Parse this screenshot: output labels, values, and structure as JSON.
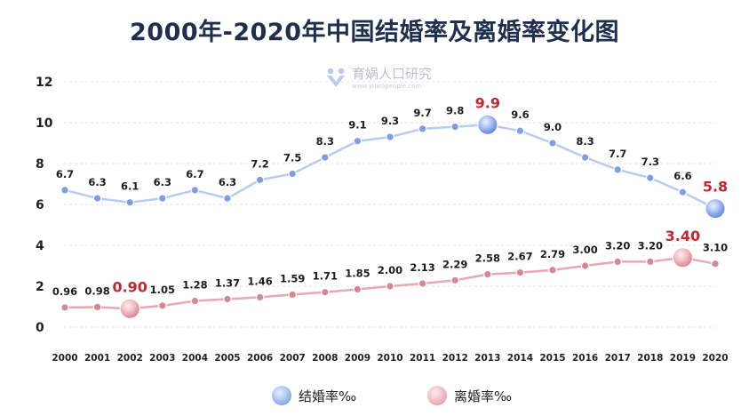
{
  "title": "2000年-2020年中国结婚率及离婚率变化图",
  "watermark": {
    "name": "育娲人口研究",
    "url": "www.yuwapeople.com"
  },
  "colors": {
    "marriage_line": "#b9ccef",
    "marriage_marker": "#7d9ee3",
    "divorce_line": "#e6a9b2",
    "divorce_marker": "#d48893",
    "highlight_label": "#c0282f",
    "grid": "#dde2ea"
  },
  "chart_data": {
    "type": "line",
    "title": "2000年-2020年中国结婚率及离婚率变化图",
    "categories": [
      "2000",
      "2001",
      "2002",
      "2003",
      "2004",
      "2005",
      "2006",
      "2007",
      "2008",
      "2009",
      "2010",
      "2011",
      "2012",
      "2013",
      "2014",
      "2015",
      "2016",
      "2017",
      "2018",
      "2019",
      "2020"
    ],
    "ylim": [
      0,
      12
    ],
    "yticks": [
      "0",
      "2",
      "4",
      "6",
      "8",
      "10",
      "12"
    ],
    "grid": true,
    "legend_position": "bottom",
    "series": [
      {
        "name": "结婚率‰",
        "values": [
          6.7,
          6.3,
          6.1,
          6.3,
          6.7,
          6.3,
          7.2,
          7.5,
          8.3,
          9.1,
          9.3,
          9.7,
          9.8,
          9.9,
          9.6,
          9.0,
          8.3,
          7.7,
          7.3,
          6.6,
          5.8
        ],
        "labels": [
          "6.7",
          "6.3",
          "6.1",
          "6.3",
          "6.7",
          "6.3",
          "7.2",
          "7.5",
          "8.3",
          "9.1",
          "9.3",
          "9.7",
          "9.8",
          "9.9",
          "9.6",
          "9.0",
          "8.3",
          "7.7",
          "7.3",
          "6.6",
          "5.8"
        ],
        "highlights": [
          13,
          20
        ]
      },
      {
        "name": "离婚率‰",
        "values": [
          0.96,
          0.98,
          0.9,
          1.05,
          1.28,
          1.37,
          1.46,
          1.59,
          1.71,
          1.85,
          2.0,
          2.13,
          2.29,
          2.58,
          2.67,
          2.79,
          3.0,
          3.2,
          3.2,
          3.4,
          3.1
        ],
        "labels": [
          "0.96",
          "0.98",
          "0.90",
          "1.05",
          "1.28",
          "1.37",
          "1.46",
          "1.59",
          "1.71",
          "1.85",
          "2.00",
          "2.13",
          "2.29",
          "2.58",
          "2.67",
          "2.79",
          "3.00",
          "3.20",
          "3.20",
          "3.40",
          "3.10"
        ],
        "highlights": [
          2,
          19
        ]
      }
    ]
  }
}
